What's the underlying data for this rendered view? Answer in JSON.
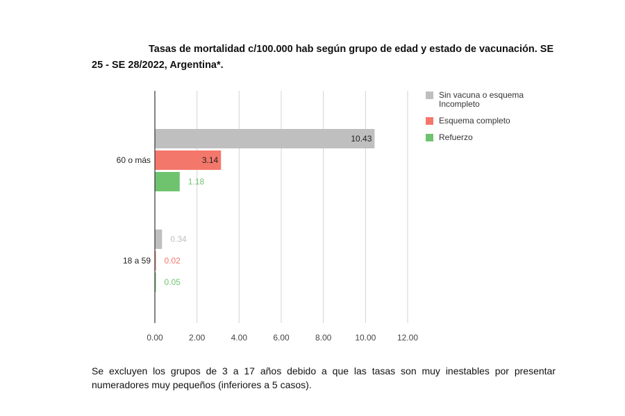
{
  "title": {
    "line1": "Tasas de mortalidad c/100.000 hab según grupo de edad y estado de vacunación. SE",
    "line2": "25 - SE 28/2022, Argentina*."
  },
  "footnote": "Se excluyen los grupos de 3 a 17 años debido a que las tasas son muy inestables por presentar numeradores muy pequeños (inferiores a 5 casos).",
  "chart_data": {
    "type": "bar",
    "orientation": "horizontal",
    "categories": [
      "60 o más",
      "18 a 59"
    ],
    "series": [
      {
        "name": "Sin vacuna o esquema Incompleto",
        "color": "#bfbfbf",
        "values": [
          10.43,
          0.34
        ],
        "labels": [
          "10.43",
          "0.34"
        ]
      },
      {
        "name": "Esquema completo",
        "color": "#f4776b",
        "values": [
          3.14,
          0.02
        ],
        "labels": [
          "3.14",
          "0.02"
        ]
      },
      {
        "name": "Refuerzo",
        "color": "#6fc36f",
        "values": [
          1.18,
          0.05
        ],
        "labels": [
          "1.18",
          "0.05"
        ]
      }
    ],
    "xlim": [
      0,
      12
    ],
    "xticks": [
      0,
      2,
      4,
      6,
      8,
      10,
      12
    ],
    "xtick_labels": [
      "0.00",
      "2.00",
      "4.00",
      "6.00",
      "8.00",
      "10.00",
      "12.00"
    ],
    "grid": "vertical",
    "legend_position": "right",
    "legend": [
      "Sin vacuna o esquema Incompleto",
      "Esquema completo",
      "Refuerzo"
    ]
  }
}
